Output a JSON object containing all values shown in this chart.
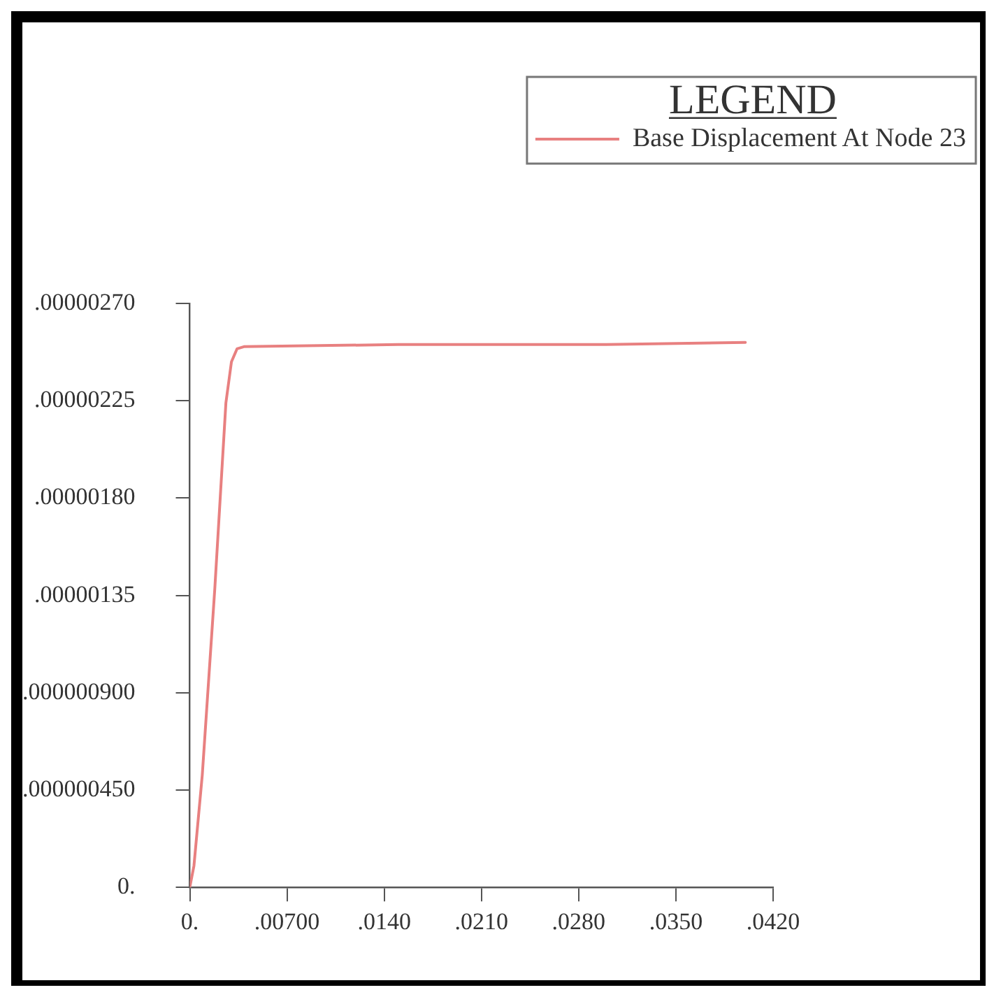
{
  "chart_data": {
    "type": "line",
    "x": [
      0,
      0.0003,
      0.0009,
      0.0018,
      0.0026,
      0.003,
      0.0034,
      0.0039,
      0.015,
      0.03,
      0.04
    ],
    "series": [
      {
        "name": "Base Displacement At Node 23",
        "color": "#e88080",
        "values": [
          0,
          1e-07,
          5.2e-07,
          1.38e-06,
          2.24e-06,
          2.43e-06,
          2.49e-06,
          2.5e-06,
          2.51e-06,
          2.51e-06,
          2.52e-06
        ]
      }
    ],
    "xlim": [
      0,
      0.042
    ],
    "ylim": [
      0,
      2.7e-06
    ],
    "xticks": [
      {
        "value": 0,
        "label": "0."
      },
      {
        "value": 0.007,
        "label": ".00700"
      },
      {
        "value": 0.014,
        "label": ".0140"
      },
      {
        "value": 0.021,
        "label": ".0210"
      },
      {
        "value": 0.028,
        "label": ".0280"
      },
      {
        "value": 0.035,
        "label": ".0350"
      },
      {
        "value": 0.042,
        "label": ".0420"
      }
    ],
    "yticks": [
      {
        "value": 0,
        "label": "0."
      },
      {
        "value": 4.5e-07,
        "label": ".000000450"
      },
      {
        "value": 9e-07,
        "label": ".000000900"
      },
      {
        "value": 1.35e-06,
        "label": ".00000135"
      },
      {
        "value": 1.8e-06,
        "label": ".00000180"
      },
      {
        "value": 2.25e-06,
        "label": ".00000225"
      },
      {
        "value": 2.7e-06,
        "label": ".00000270"
      }
    ],
    "legend": "top right",
    "legend_title": "LEGEND",
    "grid": false,
    "marker": "none",
    "line_style": "solid"
  }
}
